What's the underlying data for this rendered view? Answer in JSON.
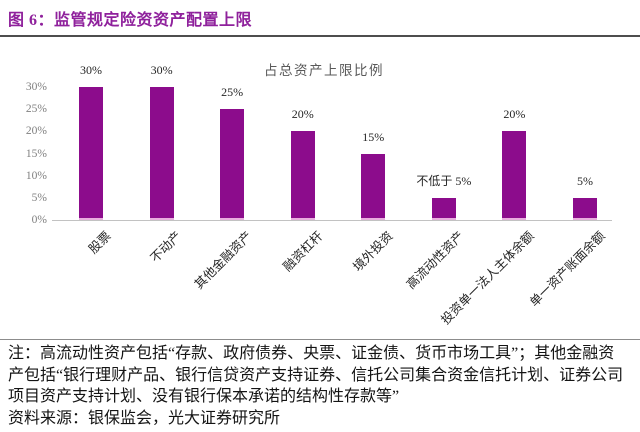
{
  "figure": {
    "title": "图 6：监管规定险资资产配置上限"
  },
  "colors": {
    "accent": "#8F219C",
    "bar": "#8C0C8C",
    "bar_edge": "#E9ADDE",
    "axis_line": "#C2C2C2",
    "tick_text": "#808080",
    "label_text": "#262626"
  },
  "chart_data": {
    "type": "bar",
    "title": "占总资产上限比例",
    "categories": [
      "股票",
      "不动产",
      "其他金融资产",
      "融资杠杆",
      "境外投资",
      "高流动性资产",
      "投资单一法人主体余额",
      "单一资产账面余额"
    ],
    "values": [
      30,
      30,
      25,
      20,
      15,
      5,
      20,
      5
    ],
    "bar_labels": [
      "30%",
      "30%",
      "25%",
      "20%",
      "15%",
      "不低于 5%",
      "20%",
      "5%"
    ],
    "y_ticks": [
      "0%",
      "5%",
      "10%",
      "15%",
      "20%",
      "25%",
      "30%"
    ],
    "xlabel": "",
    "ylabel": "",
    "ylim": [
      0,
      30
    ],
    "grid": false,
    "legend": "none"
  },
  "notes": {
    "lines": [
      "注：高流动性资产包括“存款、政府债券、央票、证金债、货币市场工具”；其他金融资",
      "产包括“银行理财产品、银行信贷资产支持证券、信托公司集合资金信托计划、证券公司",
      "项目资产支持计划、没有银行保本承诺的结构性存款等”"
    ],
    "source": "资料来源：银保监会，光大证券研究所"
  }
}
